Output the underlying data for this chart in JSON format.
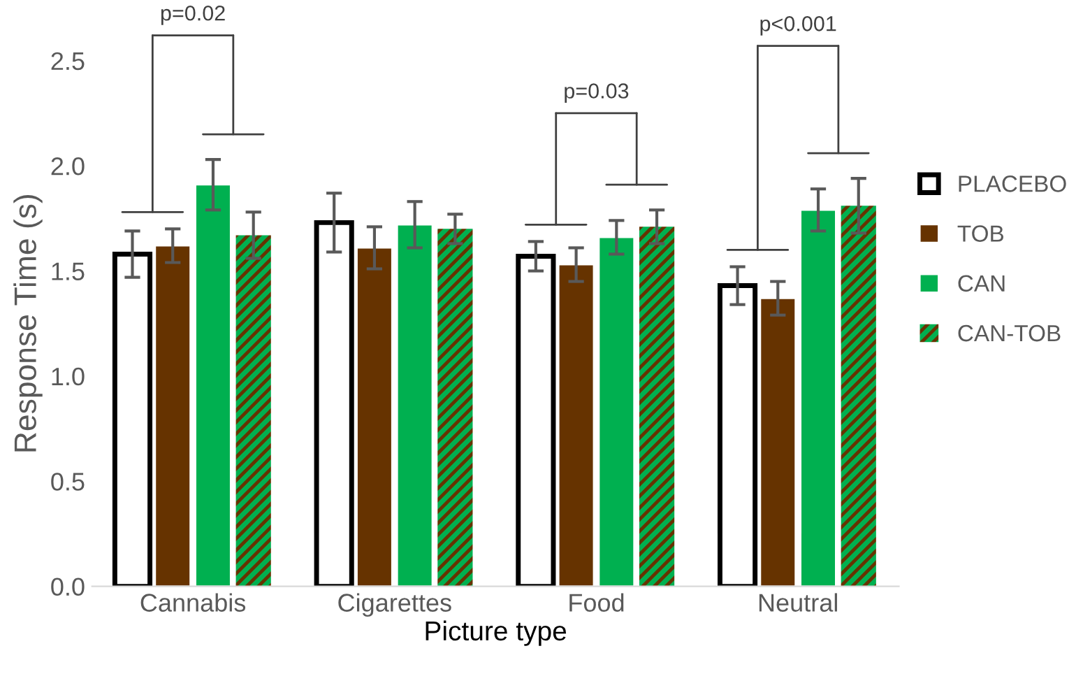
{
  "chart_data": {
    "type": "bar",
    "xlabel": "Picture type",
    "ylabel": "Response Time (s)",
    "categories": [
      "Cannabis",
      "Cigarettes",
      "Food",
      "Neutral"
    ],
    "series": [
      {
        "name": "PLACEBO",
        "color": "#ffffff",
        "values": [
          1.58,
          1.73,
          1.57,
          1.43
        ],
        "errors": [
          0.11,
          0.14,
          0.07,
          0.09
        ]
      },
      {
        "name": "TOB",
        "color": "#663300",
        "values": [
          1.62,
          1.61,
          1.53,
          1.37
        ],
        "errors": [
          0.08,
          0.1,
          0.08,
          0.08
        ]
      },
      {
        "name": "CAN",
        "color": "#00b050",
        "values": [
          1.91,
          1.72,
          1.66,
          1.79
        ],
        "errors": [
          0.12,
          0.11,
          0.08,
          0.1
        ]
      },
      {
        "name": "CAN-TOB",
        "color": "#663300",
        "values": [
          1.67,
          1.7,
          1.71,
          1.81
        ],
        "errors": [
          0.11,
          0.07,
          0.08,
          0.13
        ]
      }
    ],
    "annotations": [
      "p=0.02",
      "p=0.03",
      "p<0.001"
    ],
    "ylim": [
      0,
      2.5
    ],
    "yticks": [
      {
        "value": 0,
        "label": "0.0"
      },
      {
        "value": 0.5,
        "label": "0.5"
      },
      {
        "value": 1,
        "label": "1.0"
      },
      {
        "value": 1.5,
        "label": "1.5"
      },
      {
        "value": 2,
        "label": "2.0"
      },
      {
        "value": 2.5,
        "label": "2.5"
      }
    ],
    "grid": false,
    "legend": "right"
  }
}
